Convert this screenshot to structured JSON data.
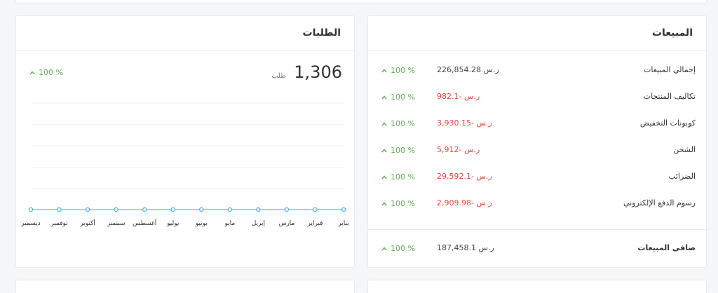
{
  "orders": {
    "title": "الطلبات",
    "total": "1,306",
    "unit": "طلب",
    "change": "100 %"
  },
  "chart_data": {
    "type": "line",
    "categories": [
      "يناير",
      "فبراير",
      "مارس",
      "إبريل",
      "مايو",
      "يونيو",
      "يوليو",
      "أغسطس",
      "سبتمبر",
      "أكتوبر",
      "نوفمبر",
      "ديسمبر"
    ],
    "values": [
      0,
      0,
      0,
      0,
      0,
      0,
      0,
      0,
      0,
      0,
      0,
      0
    ],
    "grid": true,
    "colors": {
      "line": "#9ed6ee",
      "point": "#4ab6e0"
    }
  },
  "sales": {
    "title": "المبيعات",
    "rows": [
      {
        "label": "إجمالي المبيعات",
        "value": "226,854.28",
        "currency": "ر.س",
        "change": "100 %",
        "negative": false
      },
      {
        "label": "تكاليف المنتجات",
        "value": "982.1-",
        "currency": "ر.س",
        "change": "100 %",
        "negative": true
      },
      {
        "label": "كوبونات التخفيض",
        "value": "3,930.15-",
        "currency": "ر.س",
        "change": "100 %",
        "negative": true
      },
      {
        "label": "الشحن",
        "value": "5,912-",
        "currency": "ر.س",
        "change": "100 %",
        "negative": true
      },
      {
        "label": "الضرائب",
        "value": "29,592.1-",
        "currency": "ر.س",
        "change": "100 %",
        "negative": true
      },
      {
        "label": "رسوم الدفع الإلكتروني",
        "value": "2,909.98-",
        "currency": "ر.س",
        "change": "100 %",
        "negative": true
      }
    ],
    "net": {
      "label": "صافي المبيعات",
      "value": "187,458.1",
      "currency": "ر.س",
      "change": "100 %"
    }
  },
  "icons": {
    "trend": "chevron-up-icon"
  }
}
